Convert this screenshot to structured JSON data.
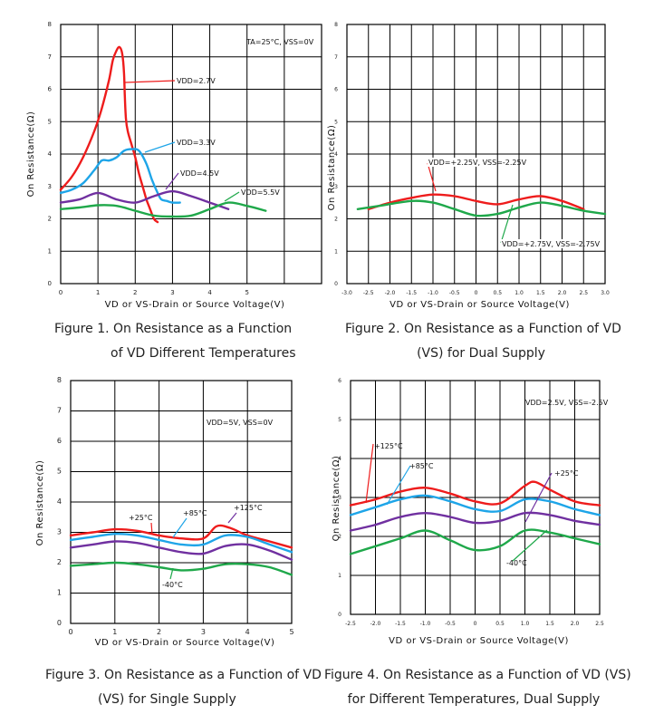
{
  "chart_data": [
    {
      "type": "line",
      "title": "Figure 1. On Resistance as a Function of VD Different Temperatures",
      "caption_lines": [
        "Figure 1. On Resistance as a Function",
        "of VD Different Temperatures"
      ],
      "xlabel": "VD or VS-Drain or Source Voltage(V)",
      "ylabel": "On Resistance(Ω)",
      "xlim": [
        0,
        7
      ],
      "ylim": [
        0,
        8
      ],
      "xticks": [
        "0",
        "1",
        "2",
        "3",
        "4",
        "5"
      ],
      "yticks": [
        "0",
        "1",
        "2",
        "3",
        "4",
        "5",
        "6",
        "7",
        "8"
      ],
      "condition": "TA=25°C, VSS=0V",
      "series": [
        {
          "name": "VDD=2.7V",
          "color": "#ee1c1c",
          "x": [
            0,
            0.3,
            0.6,
            0.9,
            1.1,
            1.3,
            1.4,
            1.5,
            1.58,
            1.65,
            1.7,
            1.72,
            1.75,
            1.8,
            1.9,
            2.0,
            2.1,
            2.2,
            2.3,
            2.4,
            2.5,
            2.6
          ],
          "y": [
            2.9,
            3.3,
            3.9,
            4.7,
            5.4,
            6.3,
            6.9,
            7.2,
            7.3,
            7.1,
            6.5,
            5.8,
            5.1,
            4.7,
            4.3,
            3.9,
            3.4,
            3.0,
            2.6,
            2.3,
            2.0,
            1.9
          ]
        },
        {
          "name": "VDD=3.3V",
          "color": "#1ea5e8",
          "x": [
            0,
            0.3,
            0.6,
            0.9,
            1.1,
            1.3,
            1.5,
            1.7,
            1.9,
            2.1,
            2.3,
            2.45,
            2.6,
            2.7,
            2.85,
            3.0,
            3.2
          ],
          "y": [
            2.8,
            2.9,
            3.1,
            3.5,
            3.8,
            3.8,
            3.9,
            4.1,
            4.15,
            4.1,
            3.7,
            3.2,
            2.8,
            2.6,
            2.55,
            2.5,
            2.5
          ]
        },
        {
          "name": "VDD=4.5V",
          "color": "#7030a0",
          "x": [
            0,
            0.5,
            1.0,
            1.5,
            2.0,
            2.5,
            3.0,
            3.5,
            4.0,
            4.5
          ],
          "y": [
            2.5,
            2.6,
            2.8,
            2.6,
            2.5,
            2.7,
            2.85,
            2.7,
            2.5,
            2.3
          ]
        },
        {
          "name": "VDD=5.5V",
          "color": "#1fa84a",
          "x": [
            0,
            0.5,
            1.0,
            1.5,
            2.0,
            2.5,
            3.0,
            3.5,
            4.0,
            4.5,
            5.0,
            5.5
          ],
          "y": [
            2.3,
            2.35,
            2.42,
            2.4,
            2.25,
            2.1,
            2.07,
            2.1,
            2.3,
            2.5,
            2.4,
            2.25
          ]
        }
      ],
      "annotations": [
        "VDD=2.7V",
        "VDD=3.3V",
        "VDD=4.5V",
        "VDD=5.5V"
      ]
    },
    {
      "type": "line",
      "title": "Figure 2. On Resistance as a Function of VD (VS) for Dual Supply",
      "caption_lines": [
        "Figure 2. On Resistance as a Function of VD",
        "(VS) for Dual Supply"
      ],
      "xlabel": "VD or VS-Drain or Source Voltage(V)",
      "ylabel": "On Resistance(Ω)",
      "xlim": [
        -3.0,
        3.0
      ],
      "ylim": [
        0,
        8
      ],
      "xticks": [
        "-3.0",
        "-2.5",
        "-2.0",
        "-1.5",
        "-1.0",
        "-0.5",
        "0",
        "0.5",
        "1.0",
        "1.5",
        "2.0",
        "2.5",
        "3.0"
      ],
      "yticks": [
        "0",
        "1",
        "2",
        "3",
        "4",
        "5",
        "6",
        "7",
        "8"
      ],
      "series": [
        {
          "name": "VDD=+2.25V, VSS=-2.25V",
          "color": "#ee1c1c",
          "x": [
            -2.5,
            -2.0,
            -1.5,
            -1.0,
            -0.5,
            0,
            0.5,
            1.0,
            1.5,
            2.0,
            2.5
          ],
          "y": [
            2.3,
            2.5,
            2.65,
            2.75,
            2.7,
            2.55,
            2.45,
            2.6,
            2.7,
            2.55,
            2.3
          ]
        },
        {
          "name": "VDD=+2.75V, VSS=-2.75V",
          "color": "#1fa84a",
          "x": [
            -2.75,
            -2.25,
            -1.5,
            -1.0,
            -0.5,
            0,
            0.5,
            1.0,
            1.5,
            2.0,
            2.5,
            3.0
          ],
          "y": [
            2.3,
            2.4,
            2.55,
            2.5,
            2.3,
            2.1,
            2.15,
            2.35,
            2.5,
            2.4,
            2.25,
            2.15
          ]
        }
      ],
      "annotations": [
        "VDD=+2.25V, VSS=-2.25V",
        "VDD=+2.75V, VSS=-2.75V"
      ]
    },
    {
      "type": "line",
      "title": "Figure 3. On Resistance as a Function of VD (VS) for Single Supply",
      "caption_lines": [
        "Figure 3. On Resistance as a Function of VD",
        "(VS) for Single Supply"
      ],
      "xlabel": "VD or VS-Drain or Source Voltage(V)",
      "ylabel": "On Resistance(Ω)",
      "xlim": [
        0,
        5
      ],
      "ylim": [
        0,
        8
      ],
      "xticks": [
        "0",
        "1",
        "2",
        "3",
        "4",
        "5"
      ],
      "yticks": [
        "0",
        "1",
        "2",
        "3",
        "4",
        "5",
        "6",
        "7",
        "8"
      ],
      "condition": "VDD=5V, VSS=0V",
      "series": [
        {
          "name": "+125°C",
          "color": "#ee1c1c",
          "x": [
            0,
            0.5,
            1.0,
            1.5,
            2.0,
            2.5,
            3.0,
            3.3,
            3.6,
            4.0,
            4.5,
            5.0
          ],
          "y": [
            2.9,
            3.0,
            3.1,
            3.05,
            2.9,
            2.8,
            2.8,
            3.2,
            3.15,
            2.9,
            2.7,
            2.5
          ]
        },
        {
          "name": "+85°C",
          "color": "#1ea5e8",
          "x": [
            0,
            0.5,
            1.0,
            1.5,
            2.0,
            2.5,
            3.0,
            3.5,
            4.0,
            4.5,
            5.0
          ],
          "y": [
            2.75,
            2.85,
            2.95,
            2.9,
            2.75,
            2.6,
            2.6,
            2.9,
            2.85,
            2.6,
            2.35
          ]
        },
        {
          "name": "+25°C",
          "color": "#7030a0",
          "x": [
            0,
            0.5,
            1.0,
            1.5,
            2.0,
            2.5,
            3.0,
            3.5,
            4.0,
            4.5,
            5.0
          ],
          "y": [
            2.5,
            2.6,
            2.7,
            2.65,
            2.5,
            2.35,
            2.3,
            2.55,
            2.6,
            2.4,
            2.1
          ]
        },
        {
          "name": "-40°C",
          "color": "#1fa84a",
          "x": [
            0,
            0.5,
            1.0,
            1.5,
            2.0,
            2.5,
            3.0,
            3.5,
            4.0,
            4.5,
            5.0
          ],
          "y": [
            1.9,
            1.95,
            2.0,
            1.95,
            1.85,
            1.75,
            1.8,
            1.95,
            1.95,
            1.85,
            1.6
          ]
        }
      ],
      "annotations": [
        "+25°C",
        "+85°C",
        "+125°C",
        "-40°C"
      ]
    },
    {
      "type": "line",
      "title": "Figure 4. On Resistance as a Function of VD (VS) for Different Temperatures, Dual Supply",
      "caption_lines": [
        "Figure 4. On Resistance as a Function of VD (VS)",
        "for Different Temperatures, Dual Supply"
      ],
      "xlabel": "VD or VS-Drain or Source Voltage(V)",
      "ylabel": "On Resistance(Ω)",
      "xlim": [
        -2.5,
        2.5
      ],
      "ylim": [
        0,
        6
      ],
      "xticks": [
        "-2.5",
        "-2.0",
        "-1.5",
        "-1.0",
        "-0.5",
        "0",
        "0.5",
        "1.0",
        "1.5",
        "2.0",
        "2.5"
      ],
      "yticks": [
        "0",
        "1",
        "2",
        "3",
        "4",
        "5",
        "6"
      ],
      "condition": "VDD=2.5V, VSS=-2.5V",
      "series": [
        {
          "name": "+125°C",
          "color": "#ee1c1c",
          "x": [
            -2.5,
            -2.0,
            -1.5,
            -1.0,
            -0.5,
            0,
            0.5,
            1.0,
            1.2,
            1.5,
            2.0,
            2.5
          ],
          "y": [
            2.8,
            2.95,
            3.15,
            3.25,
            3.1,
            2.9,
            2.85,
            3.3,
            3.4,
            3.2,
            2.9,
            2.8
          ]
        },
        {
          "name": "+85°C",
          "color": "#1ea5e8",
          "x": [
            -2.5,
            -2.0,
            -1.5,
            -1.0,
            -0.5,
            0,
            0.5,
            1.0,
            1.5,
            2.0,
            2.5
          ],
          "y": [
            2.55,
            2.75,
            2.95,
            3.05,
            2.9,
            2.7,
            2.65,
            2.95,
            2.9,
            2.7,
            2.55
          ]
        },
        {
          "name": "+25°C",
          "color": "#7030a0",
          "x": [
            -2.5,
            -2.0,
            -1.5,
            -1.0,
            -0.5,
            0,
            0.5,
            1.0,
            1.5,
            2.0,
            2.5
          ],
          "y": [
            2.15,
            2.3,
            2.5,
            2.6,
            2.5,
            2.35,
            2.4,
            2.6,
            2.55,
            2.4,
            2.3
          ]
        },
        {
          "name": "-40°C",
          "color": "#1fa84a",
          "x": [
            -2.5,
            -2.0,
            -1.5,
            -1.0,
            -0.5,
            0,
            0.5,
            1.0,
            1.5,
            2.0,
            2.5
          ],
          "y": [
            1.55,
            1.75,
            1.95,
            2.15,
            1.9,
            1.65,
            1.75,
            2.15,
            2.1,
            1.95,
            1.8
          ]
        }
      ],
      "annotations": [
        "+125°C",
        "+85°C",
        "+25°C",
        "-40°C"
      ]
    }
  ]
}
